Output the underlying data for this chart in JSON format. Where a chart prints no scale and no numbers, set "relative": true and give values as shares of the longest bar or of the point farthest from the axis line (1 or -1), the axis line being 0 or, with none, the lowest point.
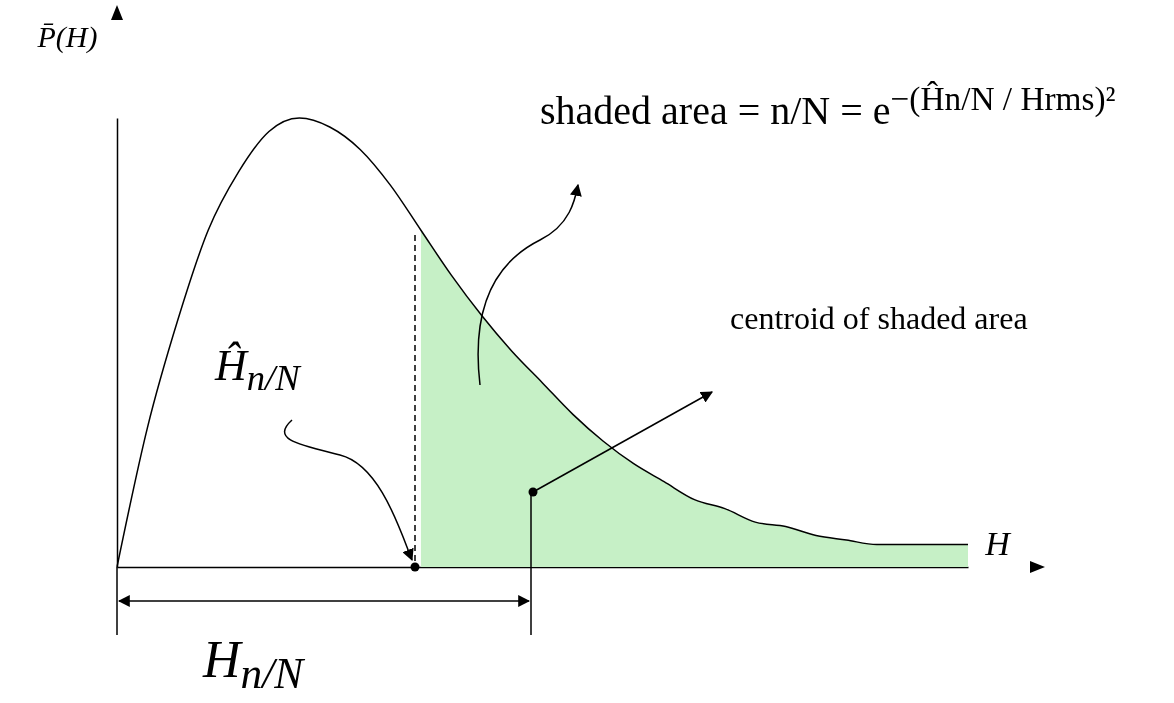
{
  "chart_data": {
    "type": "line",
    "relative": true,
    "marker": "none",
    "xlabel": "H",
    "ylabel": "P̄(H)",
    "categories": [
      null,
      null,
      null,
      null,
      null,
      null,
      null,
      null,
      null,
      null,
      null,
      null,
      null,
      null,
      null,
      null,
      null,
      null,
      null,
      null,
      null,
      null,
      null,
      null,
      null,
      null,
      null,
      null,
      null
    ],
    "series": [
      {
        "type": "area",
        "color": "#c6f0c6",
        "values": [
          null,
          null,
          null,
          null,
          null,
          null,
          null,
          null,
          null,
          null,
          0.75,
          0.65,
          0.56,
          0.48,
          0.41,
          0.34,
          0.28,
          0.23,
          0.19,
          0.15,
          0.13,
          0.1,
          0.09,
          0.07,
          0.06,
          0.05,
          0.05,
          0.05,
          0.05
        ]
      },
      {
        "color": "#000000",
        "values": [
          0,
          0.31,
          0.55,
          0.75,
          0.88,
          0.97,
          1,
          0.98,
          0.93,
          0.85,
          0.75,
          0.65,
          0.56,
          0.48,
          0.41,
          0.34,
          0.28,
          0.23,
          0.19,
          0.15,
          0.13,
          0.1,
          0.09,
          0.07,
          0.06,
          0.05,
          0.05,
          0.05,
          0.05
        ]
      }
    ],
    "annotations": [
      "shaded area = n/N = e$^{−(Ĥn/N / Hrms)²}$",
      "centroid of shaded area",
      "Ĥ$_{n/N}$",
      "H$_{n/N}$"
    ]
  }
}
